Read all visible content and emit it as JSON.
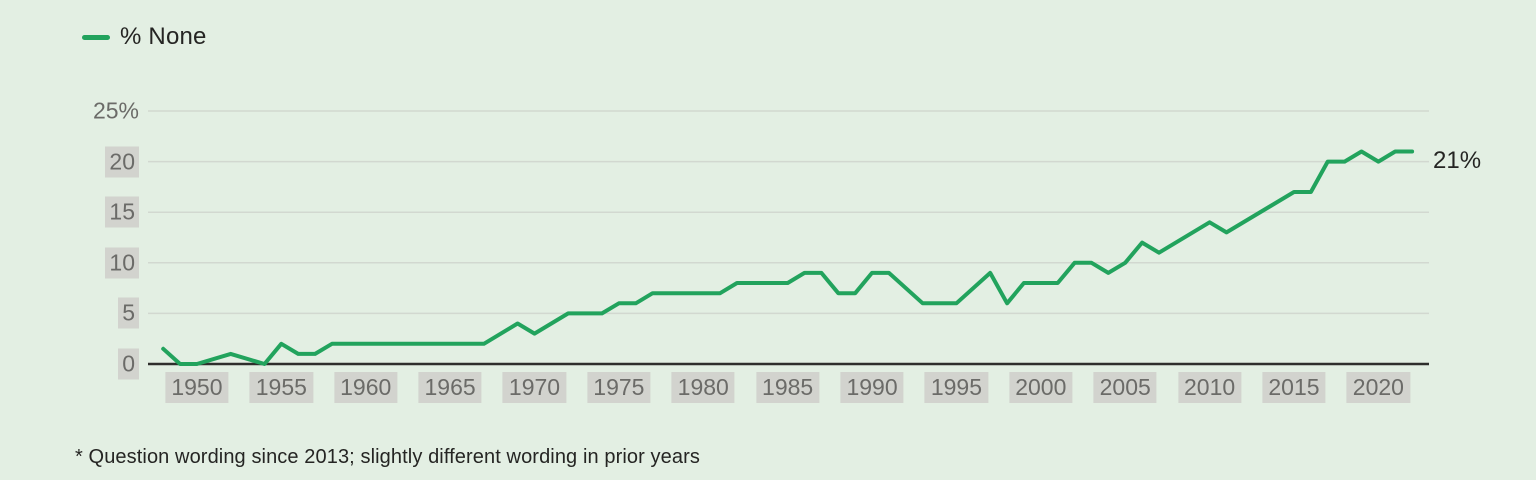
{
  "page": {
    "background": "#e3efe3"
  },
  "legend": {
    "label": "% None",
    "swatch_color": "#22a35d"
  },
  "annotation": {
    "end_label": "21%"
  },
  "footnote": {
    "text": "* Question wording since 2013; slightly different wording in prior years"
  },
  "chart_data": {
    "type": "line",
    "title": "",
    "xlabel": "",
    "ylabel": "",
    "legend_position": "top-left",
    "grid": true,
    "xlim": [
      1947.1,
      2023.0
    ],
    "ylim": [
      0,
      25
    ],
    "x_ticks": [
      1950,
      1955,
      1960,
      1965,
      1970,
      1975,
      1980,
      1985,
      1990,
      1995,
      2000,
      2005,
      2010,
      2015,
      2020
    ],
    "y_ticks": [
      {
        "value": 0,
        "label": "0",
        "boxed": true
      },
      {
        "value": 5,
        "label": "5",
        "boxed": true
      },
      {
        "value": 10,
        "label": "10",
        "boxed": true
      },
      {
        "value": 15,
        "label": "15",
        "boxed": true
      },
      {
        "value": 20,
        "label": "20",
        "boxed": true
      },
      {
        "value": 25,
        "label": "25%",
        "boxed": false
      }
    ],
    "colors": {
      "line": "#22a35d",
      "grid": "#d2d8d0",
      "axis": "#2e2e2c",
      "tick_text": "#6b6b68",
      "tick_box": "#d2d3ce",
      "text": "#252523"
    },
    "series": [
      {
        "name": "% None",
        "end_label": "21%",
        "points": [
          [
            1948,
            1.5
          ],
          [
            1949,
            0
          ],
          [
            1950,
            0
          ],
          [
            1952,
            1
          ],
          [
            1954,
            0
          ],
          [
            1955,
            2
          ],
          [
            1956,
            1
          ],
          [
            1957,
            1
          ],
          [
            1958,
            2
          ],
          [
            1967,
            2
          ],
          [
            1969,
            4
          ],
          [
            1970,
            3
          ],
          [
            1972,
            5
          ],
          [
            1974,
            5
          ],
          [
            1975,
            6
          ],
          [
            1976,
            6
          ],
          [
            1977,
            7
          ],
          [
            1981,
            7
          ],
          [
            1982,
            8
          ],
          [
            1985,
            8
          ],
          [
            1986,
            9
          ],
          [
            1987,
            9
          ],
          [
            1988,
            7
          ],
          [
            1989,
            7
          ],
          [
            1990,
            9
          ],
          [
            1991,
            9
          ],
          [
            1993,
            6
          ],
          [
            1995,
            6
          ],
          [
            1997,
            9
          ],
          [
            1998,
            6
          ],
          [
            1999,
            8
          ],
          [
            2001,
            8
          ],
          [
            2002,
            10
          ],
          [
            2003,
            10
          ],
          [
            2004,
            9
          ],
          [
            2005,
            10
          ],
          [
            2006,
            12
          ],
          [
            2007,
            11
          ],
          [
            2010,
            14
          ],
          [
            2011,
            13
          ],
          [
            2015,
            17
          ],
          [
            2016,
            17
          ],
          [
            2017,
            20
          ],
          [
            2018,
            20
          ],
          [
            2019,
            21
          ],
          [
            2020,
            20
          ],
          [
            2021,
            21
          ],
          [
            2022,
            21
          ]
        ]
      }
    ]
  }
}
